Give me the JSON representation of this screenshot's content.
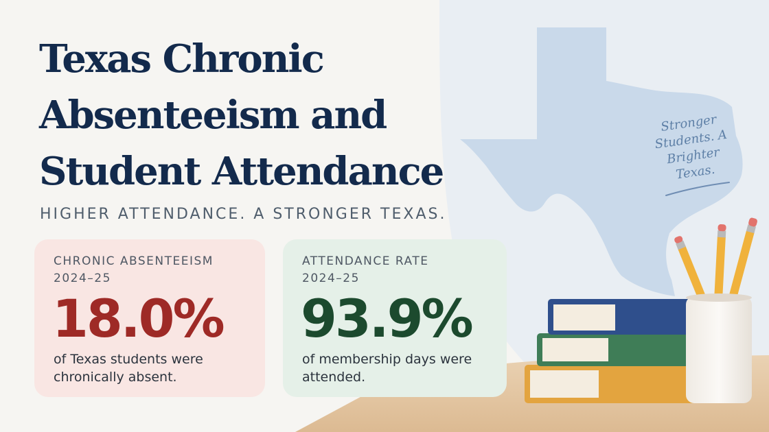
{
  "title_lines": [
    "Texas Chronic",
    "Absenteeism and",
    "Student Attendance"
  ],
  "tagline": "HIGHER ATTENDANCE. A STRONGER TEXAS.",
  "cards": [
    {
      "label_line1": "CHRONIC ABSENTEEISM",
      "label_line2": "2024–25",
      "value": "18.0%",
      "caption": "of Texas students were chronically absent.",
      "accent": "#9e2a26"
    },
    {
      "label_line1": "ATTENDANCE RATE",
      "label_line2": "2024–25",
      "value": "93.9%",
      "caption": "of membership days were attended.",
      "accent": "#1c4a2e"
    }
  ],
  "map_note": "Stronger Students. A Brighter Texas.",
  "colors": {
    "title": "#132a4c",
    "map": "#c9d9ea",
    "absent_card": "#f9e6e3",
    "attendance_card": "#e5f0e8"
  },
  "icons": [
    "texas-map",
    "book-stack",
    "pencil-cup"
  ]
}
